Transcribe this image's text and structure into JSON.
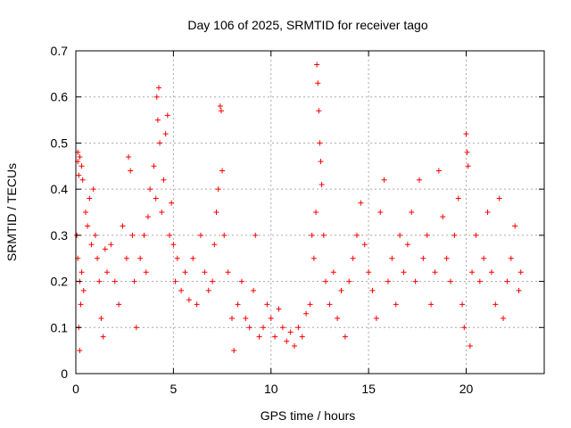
{
  "chart_data": {
    "type": "scatter",
    "title": "Day 106 of 2025, SRMTID for receiver tago",
    "xlabel": "GPS time / hours",
    "ylabel": "SRMTID / TECUs",
    "xlim": [
      0,
      24
    ],
    "ylim": [
      0,
      0.7
    ],
    "x_ticks": [
      0,
      5,
      10,
      15,
      20
    ],
    "x_tick_labels": [
      "0",
      "5",
      "10",
      "15",
      "20"
    ],
    "y_ticks": [
      0,
      0.1,
      0.2,
      0.3,
      0.4,
      0.5,
      0.6,
      0.7
    ],
    "y_tick_labels": [
      "0",
      "0.1",
      "0.2",
      "0.3",
      "0.4",
      "0.5",
      "0.6",
      "0.7"
    ],
    "grid": true,
    "marker": "+",
    "color": "#ff0000",
    "series": [
      {
        "name": "SRMTID",
        "points": [
          [
            0.1,
            0.48
          ],
          [
            0.1,
            0.46
          ],
          [
            0.15,
            0.43
          ],
          [
            0.2,
            0.47
          ],
          [
            0.3,
            0.45
          ],
          [
            0.35,
            0.42
          ],
          [
            0.05,
            0.3
          ],
          [
            0.1,
            0.25
          ],
          [
            0.2,
            0.2
          ],
          [
            0.25,
            0.15
          ],
          [
            0.15,
            0.1
          ],
          [
            0.2,
            0.05
          ],
          [
            0.3,
            0.22
          ],
          [
            0.4,
            0.18
          ],
          [
            0.5,
            0.35
          ],
          [
            0.6,
            0.32
          ],
          [
            0.7,
            0.38
          ],
          [
            0.8,
            0.28
          ],
          [
            0.9,
            0.4
          ],
          [
            1.0,
            0.3
          ],
          [
            1.1,
            0.25
          ],
          [
            1.2,
            0.2
          ],
          [
            1.3,
            0.12
          ],
          [
            1.4,
            0.08
          ],
          [
            1.5,
            0.27
          ],
          [
            1.6,
            0.22
          ],
          [
            1.8,
            0.28
          ],
          [
            2.0,
            0.2
          ],
          [
            2.2,
            0.15
          ],
          [
            2.4,
            0.32
          ],
          [
            2.6,
            0.25
          ],
          [
            2.7,
            0.47
          ],
          [
            2.8,
            0.44
          ],
          [
            2.9,
            0.3
          ],
          [
            3.0,
            0.2
          ],
          [
            3.1,
            0.1
          ],
          [
            3.3,
            0.25
          ],
          [
            3.5,
            0.3
          ],
          [
            3.6,
            0.22
          ],
          [
            3.7,
            0.34
          ],
          [
            3.8,
            0.4
          ],
          [
            4.0,
            0.45
          ],
          [
            4.1,
            0.38
          ],
          [
            4.15,
            0.6
          ],
          [
            4.2,
            0.55
          ],
          [
            4.25,
            0.62
          ],
          [
            4.3,
            0.5
          ],
          [
            4.4,
            0.35
          ],
          [
            4.5,
            0.42
          ],
          [
            4.6,
            0.52
          ],
          [
            4.7,
            0.56
          ],
          [
            4.8,
            0.3
          ],
          [
            4.9,
            0.37
          ],
          [
            5.0,
            0.28
          ],
          [
            5.1,
            0.2
          ],
          [
            5.2,
            0.25
          ],
          [
            5.4,
            0.18
          ],
          [
            5.6,
            0.22
          ],
          [
            5.8,
            0.16
          ],
          [
            6.0,
            0.25
          ],
          [
            6.2,
            0.15
          ],
          [
            6.4,
            0.3
          ],
          [
            6.6,
            0.22
          ],
          [
            6.8,
            0.18
          ],
          [
            7.0,
            0.2
          ],
          [
            7.1,
            0.28
          ],
          [
            7.2,
            0.35
          ],
          [
            7.3,
            0.4
          ],
          [
            7.4,
            0.58
          ],
          [
            7.45,
            0.57
          ],
          [
            7.5,
            0.44
          ],
          [
            7.6,
            0.3
          ],
          [
            7.8,
            0.22
          ],
          [
            8.0,
            0.12
          ],
          [
            8.1,
            0.05
          ],
          [
            8.3,
            0.15
          ],
          [
            8.5,
            0.2
          ],
          [
            8.7,
            0.12
          ],
          [
            8.9,
            0.1
          ],
          [
            9.1,
            0.18
          ],
          [
            9.2,
            0.3
          ],
          [
            9.4,
            0.08
          ],
          [
            9.6,
            0.1
          ],
          [
            9.8,
            0.15
          ],
          [
            10.0,
            0.12
          ],
          [
            10.2,
            0.08
          ],
          [
            10.4,
            0.14
          ],
          [
            10.6,
            0.1
          ],
          [
            10.8,
            0.07
          ],
          [
            11.0,
            0.09
          ],
          [
            11.2,
            0.06
          ],
          [
            11.4,
            0.1
          ],
          [
            11.6,
            0.08
          ],
          [
            11.8,
            0.13
          ],
          [
            12.0,
            0.15
          ],
          [
            12.1,
            0.3
          ],
          [
            12.2,
            0.25
          ],
          [
            12.3,
            0.35
          ],
          [
            12.35,
            0.67
          ],
          [
            12.4,
            0.63
          ],
          [
            12.45,
            0.57
          ],
          [
            12.5,
            0.5
          ],
          [
            12.55,
            0.46
          ],
          [
            12.6,
            0.41
          ],
          [
            12.7,
            0.3
          ],
          [
            12.8,
            0.2
          ],
          [
            13.0,
            0.15
          ],
          [
            13.2,
            0.22
          ],
          [
            13.4,
            0.12
          ],
          [
            13.6,
            0.18
          ],
          [
            13.8,
            0.08
          ],
          [
            14.0,
            0.2
          ],
          [
            14.2,
            0.25
          ],
          [
            14.4,
            0.3
          ],
          [
            14.6,
            0.37
          ],
          [
            14.8,
            0.28
          ],
          [
            15.0,
            0.22
          ],
          [
            15.2,
            0.18
          ],
          [
            15.4,
            0.12
          ],
          [
            15.6,
            0.35
          ],
          [
            15.8,
            0.42
          ],
          [
            16.0,
            0.2
          ],
          [
            16.2,
            0.25
          ],
          [
            16.4,
            0.15
          ],
          [
            16.6,
            0.3
          ],
          [
            16.8,
            0.22
          ],
          [
            17.0,
            0.28
          ],
          [
            17.2,
            0.35
          ],
          [
            17.4,
            0.2
          ],
          [
            17.6,
            0.42
          ],
          [
            17.8,
            0.25
          ],
          [
            18.0,
            0.3
          ],
          [
            18.2,
            0.15
          ],
          [
            18.4,
            0.22
          ],
          [
            18.6,
            0.44
          ],
          [
            18.8,
            0.34
          ],
          [
            19.0,
            0.25
          ],
          [
            19.2,
            0.2
          ],
          [
            19.4,
            0.3
          ],
          [
            19.6,
            0.38
          ],
          [
            19.8,
            0.15
          ],
          [
            19.9,
            0.1
          ],
          [
            20.0,
            0.52
          ],
          [
            20.05,
            0.48
          ],
          [
            20.1,
            0.45
          ],
          [
            20.2,
            0.06
          ],
          [
            20.3,
            0.22
          ],
          [
            20.5,
            0.3
          ],
          [
            20.7,
            0.2
          ],
          [
            20.9,
            0.25
          ],
          [
            21.1,
            0.35
          ],
          [
            21.3,
            0.22
          ],
          [
            21.5,
            0.15
          ],
          [
            21.7,
            0.38
          ],
          [
            21.9,
            0.12
          ],
          [
            22.1,
            0.2
          ],
          [
            22.3,
            0.25
          ],
          [
            22.5,
            0.32
          ],
          [
            22.7,
            0.18
          ],
          [
            22.8,
            0.22
          ]
        ]
      }
    ]
  }
}
